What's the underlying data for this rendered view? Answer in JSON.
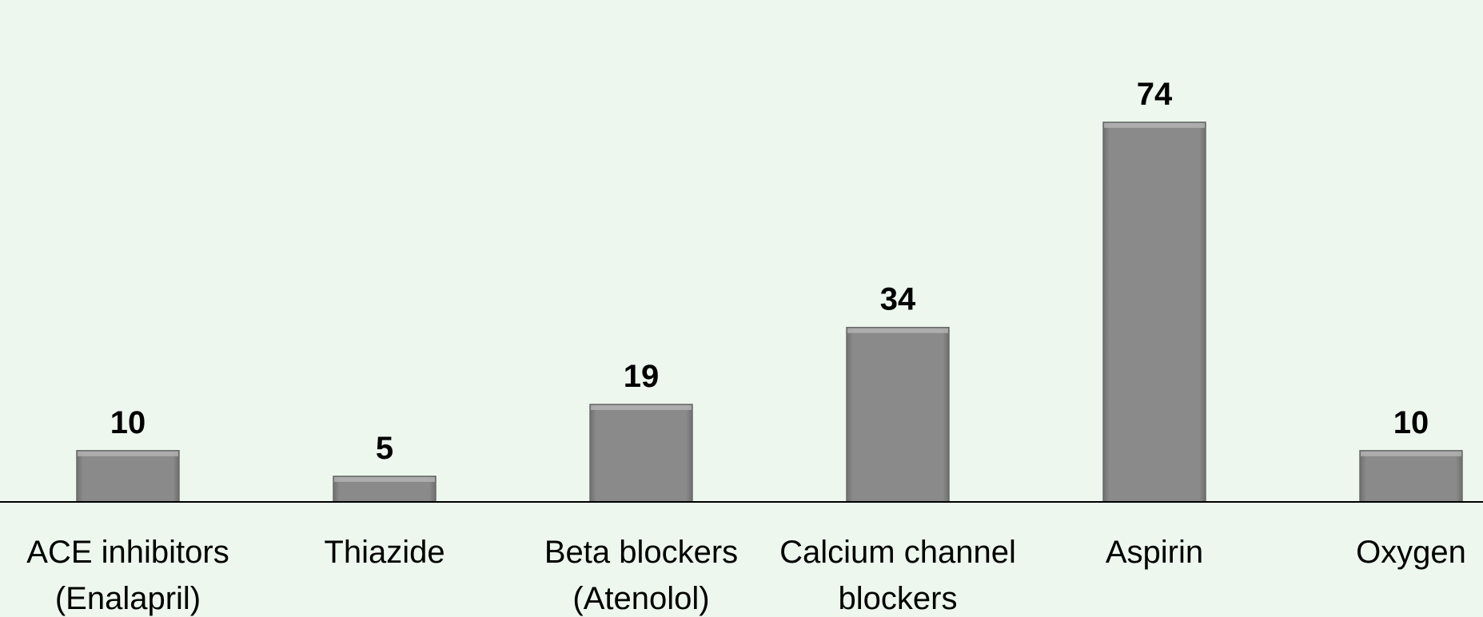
{
  "chart_data": {
    "type": "bar",
    "categories": [
      "ACE inhibitors\n(Enalapril)",
      "Thiazide",
      "Beta blockers\n(Atenolol)",
      "Calcium channel\nblockers",
      "Aspirin",
      "Oxygen"
    ],
    "values": [
      10,
      5,
      19,
      34,
      74,
      10
    ],
    "color": "#888888"
  }
}
